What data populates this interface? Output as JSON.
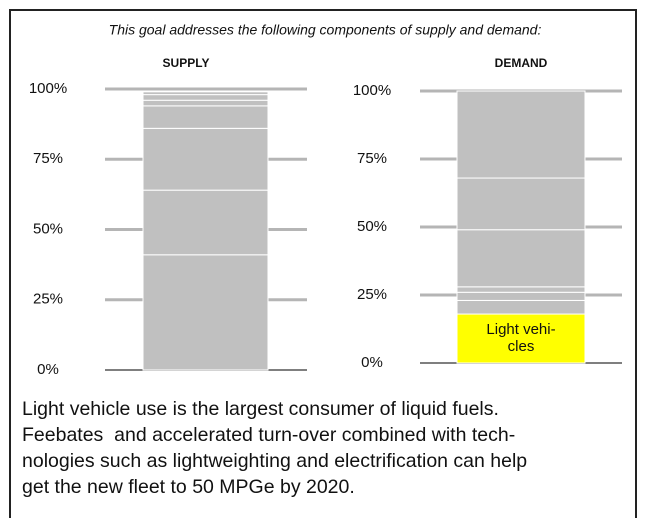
{
  "header": "This goal addresses the following components of supply and demand:",
  "chart_data": [
    {
      "type": "bar",
      "title": "SUPPLY",
      "stacked": true,
      "color": "#c0c0c0",
      "values": [
        41,
        23,
        22,
        8,
        2,
        2,
        1
      ],
      "ylim": [
        0,
        100
      ],
      "yticks": [
        {
          "value": 0,
          "label": "0%"
        },
        {
          "value": 25,
          "label": "25%"
        },
        {
          "value": 50,
          "label": "50%"
        },
        {
          "value": 75,
          "label": "75%"
        },
        {
          "value": 100,
          "label": "100%"
        }
      ]
    },
    {
      "type": "bar",
      "title": "DEMAND",
      "stacked": true,
      "color": "#c0c0c0",
      "values": [
        18,
        5,
        3,
        2,
        21,
        19,
        32
      ],
      "highlight": {
        "index": 0,
        "color": "#ffff00",
        "lines": [
          "Light vehi-",
          "cles"
        ]
      },
      "ylim": [
        0,
        100
      ],
      "yticks": [
        {
          "value": 0,
          "label": "0%"
        },
        {
          "value": 25,
          "label": "25%"
        },
        {
          "value": 50,
          "label": "50%"
        },
        {
          "value": 75,
          "label": "75%"
        },
        {
          "value": 100,
          "label": "100%"
        }
      ]
    }
  ],
  "footer": [
    "Light vehicle use is the largest consumer of liquid fuels.",
    "Feebates  and accelerated turn-over combined with tech-",
    "nologies such as lightweighting and electrification can help",
    "get the new fleet to 50 MPGe by 2020."
  ]
}
